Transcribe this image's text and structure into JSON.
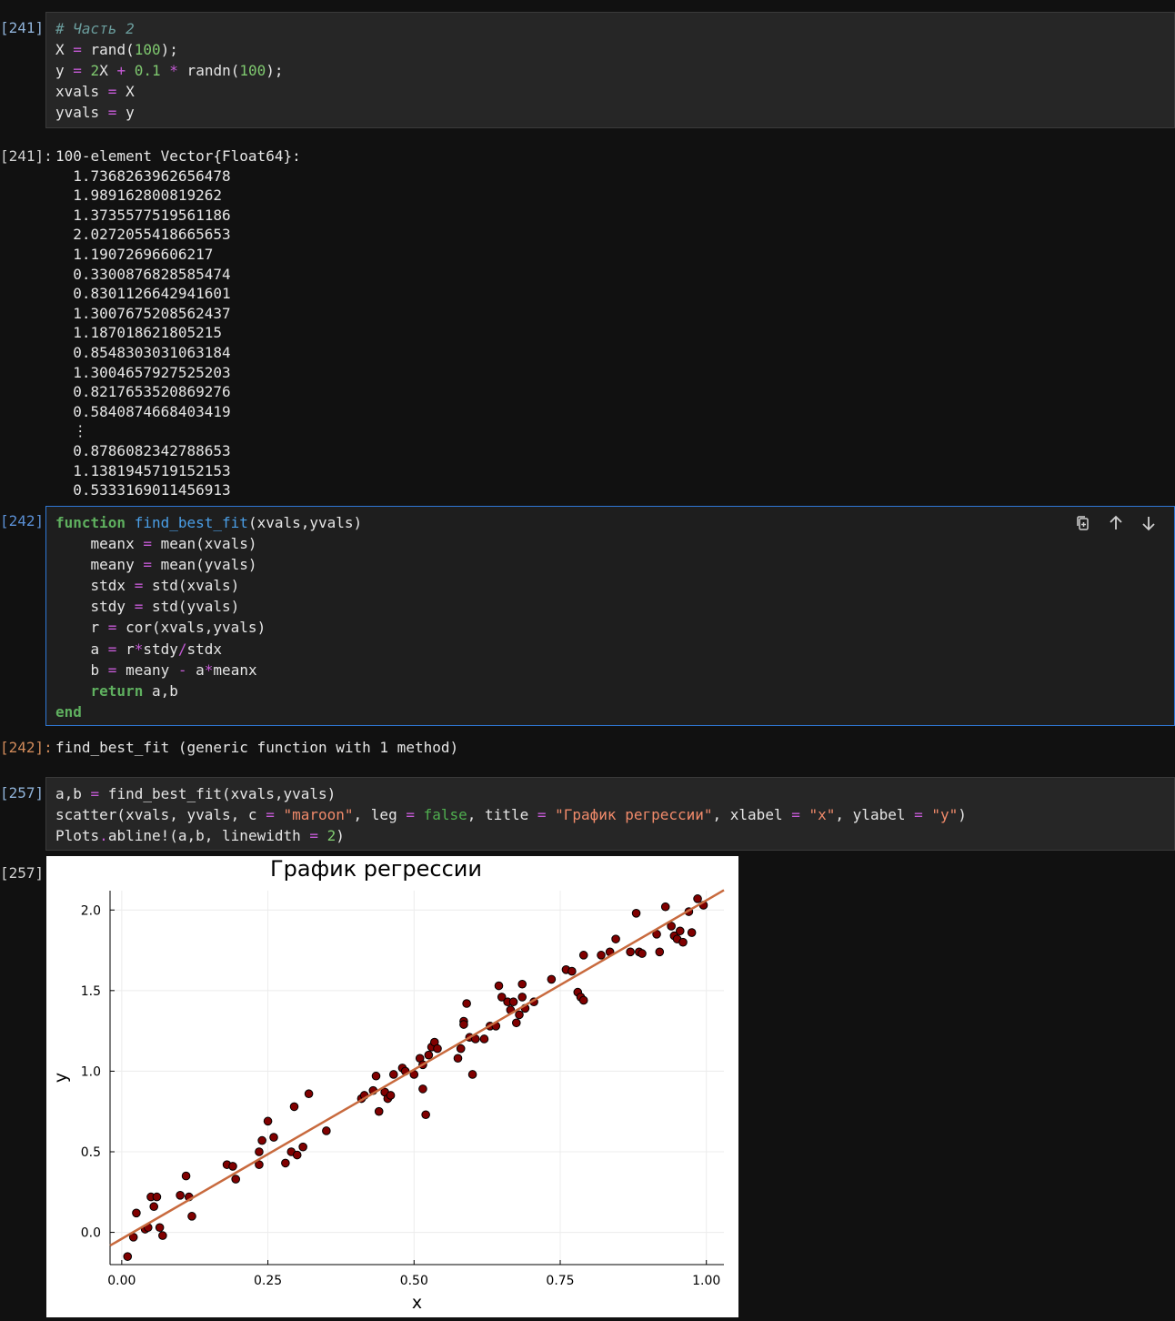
{
  "cells": [
    {
      "prompt": "[241]:",
      "lines": [
        [
          [
            "cm",
            "# Часть 2"
          ]
        ],
        [
          [
            "",
            "X "
          ],
          [
            "op",
            "="
          ],
          [
            "",
            " rand("
          ],
          [
            "num",
            "100"
          ],
          [
            "",
            ");"
          ]
        ],
        [
          [
            "",
            "y "
          ],
          [
            "op",
            "="
          ],
          [
            "",
            " "
          ],
          [
            "num",
            "2"
          ],
          [
            "",
            "X "
          ],
          [
            "op",
            "+"
          ],
          [
            "",
            " "
          ],
          [
            "num",
            "0.1"
          ],
          [
            "",
            " "
          ],
          [
            "op",
            "*"
          ],
          [
            "",
            " randn("
          ],
          [
            "num",
            "100"
          ],
          [
            "",
            ");"
          ]
        ],
        [
          [
            "",
            "xvals "
          ],
          [
            "op",
            "="
          ],
          [
            "",
            " X"
          ]
        ],
        [
          [
            "",
            "yvals "
          ],
          [
            "op",
            "="
          ],
          [
            "",
            " y"
          ]
        ]
      ]
    },
    {
      "prompt": "[242]:",
      "lines": [
        [
          [
            "kw",
            "function"
          ],
          [
            "",
            " "
          ],
          [
            "fn",
            "find_best_fit"
          ],
          [
            "",
            "(xvals,yvals)"
          ]
        ],
        [
          [
            "",
            "    meanx "
          ],
          [
            "op",
            "="
          ],
          [
            "",
            " mean(xvals)"
          ]
        ],
        [
          [
            "",
            "    meany "
          ],
          [
            "op",
            "="
          ],
          [
            "",
            " mean(yvals)"
          ]
        ],
        [
          [
            "",
            "    stdx "
          ],
          [
            "op",
            "="
          ],
          [
            "",
            " std(xvals)"
          ]
        ],
        [
          [
            "",
            "    stdy "
          ],
          [
            "op",
            "="
          ],
          [
            "",
            " std(yvals)"
          ]
        ],
        [
          [
            "",
            "    r "
          ],
          [
            "op",
            "="
          ],
          [
            "",
            " cor(xvals,yvals)"
          ]
        ],
        [
          [
            "",
            "    a "
          ],
          [
            "op",
            "="
          ],
          [
            "",
            " r"
          ],
          [
            "op",
            "*"
          ],
          [
            "",
            "stdy"
          ],
          [
            "op",
            "/"
          ],
          [
            "",
            "stdx"
          ]
        ],
        [
          [
            "",
            "    b "
          ],
          [
            "op",
            "="
          ],
          [
            "",
            " meany "
          ],
          [
            "op",
            "-"
          ],
          [
            "",
            " a"
          ],
          [
            "op",
            "*"
          ],
          [
            "",
            "meanx"
          ]
        ],
        [
          [
            "",
            "    "
          ],
          [
            "kw",
            "return"
          ],
          [
            "",
            " a,b"
          ]
        ],
        [
          [
            "kw",
            "end"
          ]
        ]
      ]
    },
    {
      "prompt": "[257]:",
      "lines": [
        [
          [
            "",
            "a,b "
          ],
          [
            "op",
            "="
          ],
          [
            "",
            " find_best_fit(xvals,yvals)"
          ]
        ],
        [
          [
            "",
            "scatter(xvals, yvals, c "
          ],
          [
            "op",
            "="
          ],
          [
            "",
            " "
          ],
          [
            "str",
            "\"maroon\""
          ],
          [
            "",
            ", leg "
          ],
          [
            "op",
            "="
          ],
          [
            "",
            " "
          ],
          [
            "bool",
            "false"
          ],
          [
            "",
            ", title "
          ],
          [
            "op",
            "="
          ],
          [
            "",
            " "
          ],
          [
            "str",
            "\"График регрессии\""
          ],
          [
            "",
            ", xlabel "
          ],
          [
            "op",
            "="
          ],
          [
            "",
            " "
          ],
          [
            "str",
            "\"x\""
          ],
          [
            "",
            ", ylabel "
          ],
          [
            "op",
            "="
          ],
          [
            "",
            " "
          ],
          [
            "str",
            "\"y\""
          ],
          [
            "",
            ")"
          ]
        ],
        [
          [
            "",
            "Plots"
          ],
          [
            "op",
            "."
          ],
          [
            "",
            "abline!(a,b, linewidth "
          ],
          [
            "op",
            "="
          ],
          [
            "",
            " "
          ],
          [
            "num",
            "2"
          ],
          [
            "",
            ")"
          ]
        ]
      ]
    }
  ],
  "outputs": {
    "out241_prompt": "[241]:",
    "out241_lines": [
      "100-element Vector{Float64}:",
      "  1.7368263962656478",
      "  1.989162800819262",
      "  1.3735577519561186",
      "  2.0272055418665653",
      "  1.19072696606217",
      "  0.3300876828585474",
      "  0.8301126642941601",
      "  1.3007675208562437",
      "  1.187018621805215",
      "  0.8548303031063184",
      "  1.3004657927525203",
      "  0.8217653520869276",
      "  0.5840874668403419",
      "  ⋮",
      "  0.8786082342788653",
      "  1.1381945719152153",
      "  0.5333169011456913"
    ],
    "out242_prompt": "[242]:",
    "out242_text": "find_best_fit (generic function with 1 method)",
    "out257_prompt": "[257]:"
  },
  "toolbar": {
    "copy_icon": "copy-icon",
    "up_icon": "arrow-up-icon",
    "down_icon": "arrow-down-icon"
  },
  "chart_data": {
    "type": "scatter",
    "title": "График регрессии",
    "xlabel": "x",
    "ylabel": "y",
    "xlim": [
      -0.02,
      1.03
    ],
    "ylim": [
      -0.2,
      2.12
    ],
    "xticks": [
      0,
      0.25,
      0.5,
      0.75,
      1
    ],
    "xtick_labels": [
      "0.00",
      "0.25",
      "0.50",
      "0.75",
      "1.00"
    ],
    "yticks": [
      0,
      0.5,
      1,
      1.5,
      2
    ],
    "ytick_labels": [
      "0.0",
      "0.5",
      "1.0",
      "1.5",
      "2.0"
    ],
    "grid": true,
    "legend": false,
    "point_color": "#800000",
    "line_color": "#c86a3e",
    "fit_line": {
      "a": 2.1,
      "b": -0.04
    },
    "points": [
      [
        0.01,
        -0.15
      ],
      [
        0.02,
        -0.03
      ],
      [
        0.025,
        0.12
      ],
      [
        0.04,
        0.02
      ],
      [
        0.045,
        0.03
      ],
      [
        0.05,
        0.22
      ],
      [
        0.055,
        0.16
      ],
      [
        0.06,
        0.22
      ],
      [
        0.065,
        0.03
      ],
      [
        0.07,
        -0.02
      ],
      [
        0.1,
        0.23
      ],
      [
        0.11,
        0.35
      ],
      [
        0.115,
        0.22
      ],
      [
        0.12,
        0.1
      ],
      [
        0.18,
        0.42
      ],
      [
        0.19,
        0.41
      ],
      [
        0.195,
        0.33
      ],
      [
        0.235,
        0.42
      ],
      [
        0.235,
        0.5
      ],
      [
        0.24,
        0.57
      ],
      [
        0.25,
        0.69
      ],
      [
        0.26,
        0.59
      ],
      [
        0.28,
        0.43
      ],
      [
        0.29,
        0.5
      ],
      [
        0.295,
        0.78
      ],
      [
        0.3,
        0.48
      ],
      [
        0.31,
        0.53
      ],
      [
        0.32,
        0.86
      ],
      [
        0.35,
        0.63
      ],
      [
        0.41,
        0.83
      ],
      [
        0.415,
        0.85
      ],
      [
        0.43,
        0.88
      ],
      [
        0.435,
        0.97
      ],
      [
        0.44,
        0.75
      ],
      [
        0.45,
        0.87
      ],
      [
        0.455,
        0.83
      ],
      [
        0.46,
        0.85
      ],
      [
        0.465,
        0.98
      ],
      [
        0.48,
        1.02
      ],
      [
        0.485,
        1.0
      ],
      [
        0.5,
        0.98
      ],
      [
        0.51,
        1.08
      ],
      [
        0.515,
        1.04
      ],
      [
        0.515,
        0.89
      ],
      [
        0.52,
        0.73
      ],
      [
        0.525,
        1.1
      ],
      [
        0.53,
        1.15
      ],
      [
        0.535,
        1.18
      ],
      [
        0.54,
        1.14
      ],
      [
        0.575,
        1.08
      ],
      [
        0.58,
        1.14
      ],
      [
        0.585,
        1.31
      ],
      [
        0.585,
        1.29
      ],
      [
        0.59,
        1.42
      ],
      [
        0.595,
        1.21
      ],
      [
        0.6,
        0.98
      ],
      [
        0.605,
        1.2
      ],
      [
        0.62,
        1.2
      ],
      [
        0.63,
        1.28
      ],
      [
        0.64,
        1.28
      ],
      [
        0.645,
        1.53
      ],
      [
        0.65,
        1.46
      ],
      [
        0.66,
        1.43
      ],
      [
        0.665,
        1.38
      ],
      [
        0.67,
        1.43
      ],
      [
        0.675,
        1.3
      ],
      [
        0.68,
        1.35
      ],
      [
        0.685,
        1.54
      ],
      [
        0.685,
        1.46
      ],
      [
        0.69,
        1.39
      ],
      [
        0.705,
        1.43
      ],
      [
        0.735,
        1.57
      ],
      [
        0.76,
        1.63
      ],
      [
        0.77,
        1.62
      ],
      [
        0.78,
        1.49
      ],
      [
        0.785,
        1.46
      ],
      [
        0.79,
        1.44
      ],
      [
        0.79,
        1.72
      ],
      [
        0.82,
        1.72
      ],
      [
        0.835,
        1.74
      ],
      [
        0.845,
        1.82
      ],
      [
        0.87,
        1.74
      ],
      [
        0.88,
        1.98
      ],
      [
        0.885,
        1.74
      ],
      [
        0.89,
        1.73
      ],
      [
        0.915,
        1.85
      ],
      [
        0.92,
        1.74
      ],
      [
        0.93,
        2.02
      ],
      [
        0.94,
        1.9
      ],
      [
        0.945,
        1.84
      ],
      [
        0.95,
        1.82
      ],
      [
        0.955,
        1.87
      ],
      [
        0.96,
        1.8
      ],
      [
        0.97,
        1.99
      ],
      [
        0.975,
        1.86
      ],
      [
        0.985,
        2.07
      ],
      [
        0.995,
        2.03
      ]
    ]
  }
}
